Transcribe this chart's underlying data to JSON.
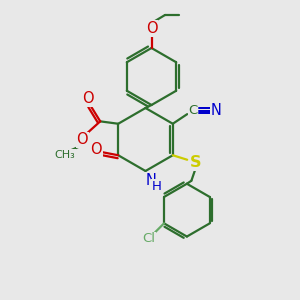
{
  "bg_color": "#e8e8e8",
  "bond_color": "#2d6e2d",
  "bond_width": 1.6,
  "o_color": "#cc0000",
  "n_color": "#0000cc",
  "s_color": "#cccc00",
  "cl_color": "#66aa66",
  "text_fontsize": 9.5,
  "figsize": [
    3.0,
    3.0
  ],
  "dpi": 100,
  "xlim": [
    0,
    10
  ],
  "ylim": [
    0,
    10
  ]
}
